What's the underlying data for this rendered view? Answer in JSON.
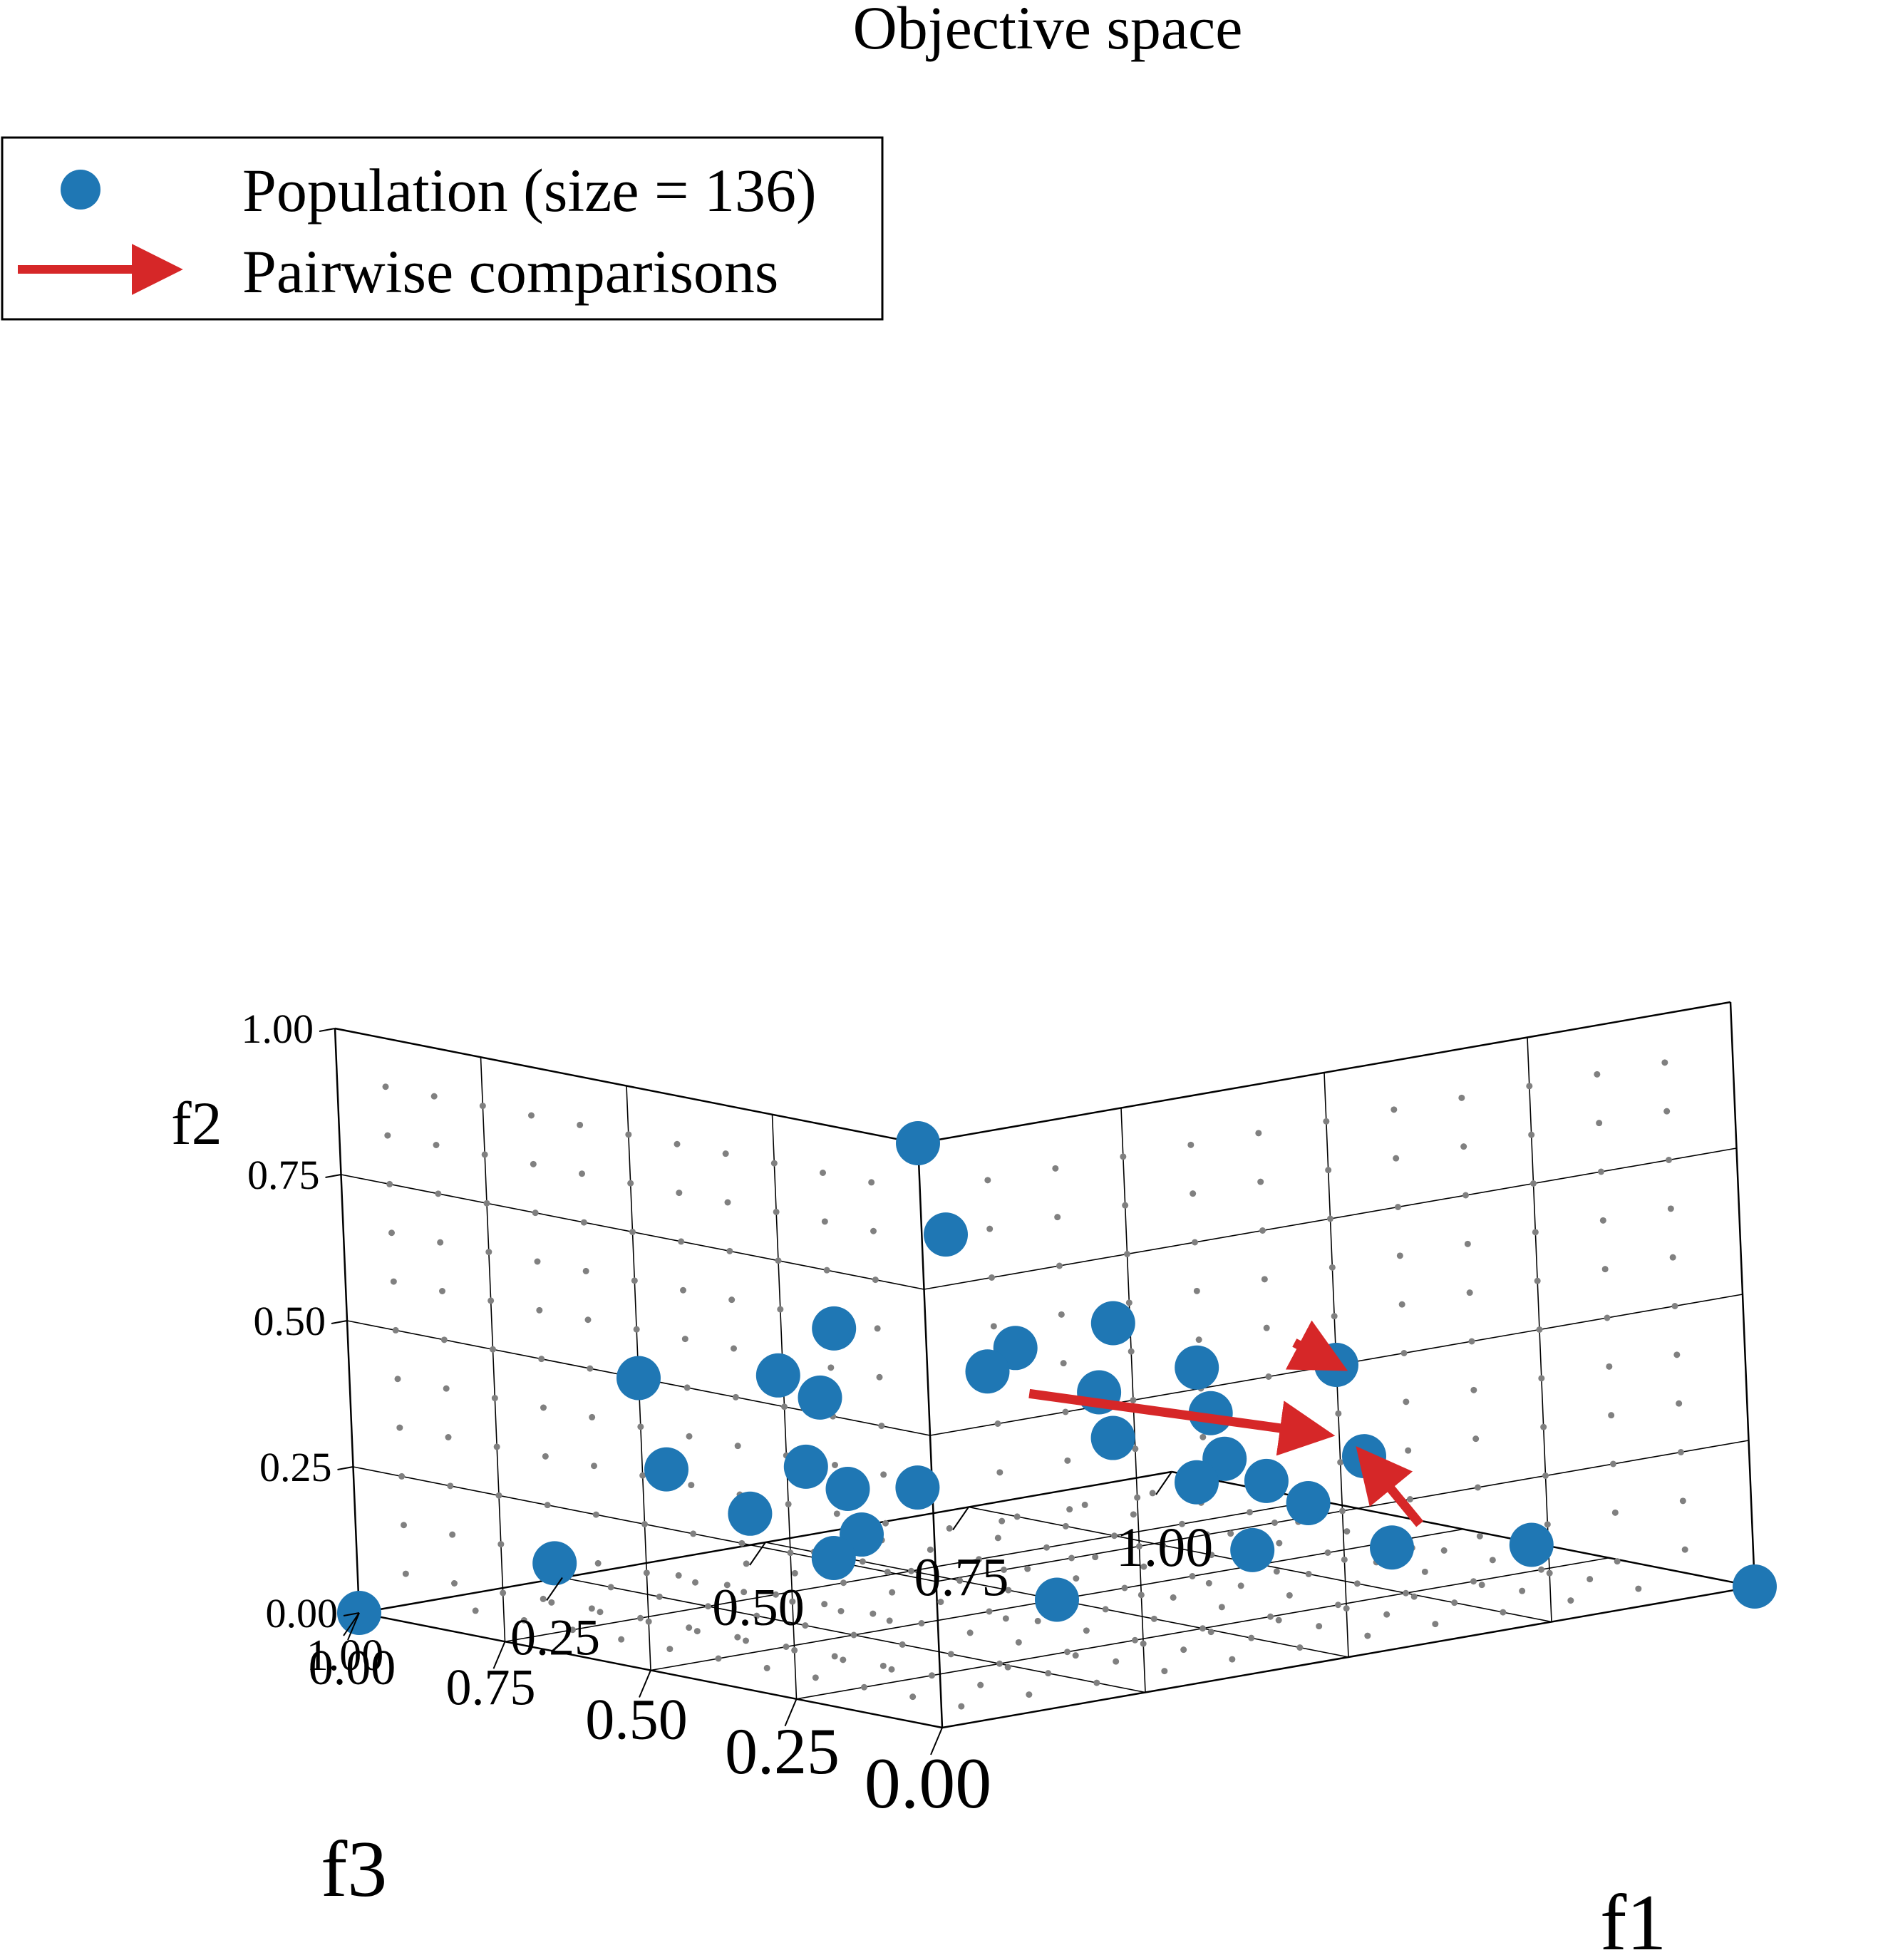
{
  "chart_data": {
    "type": "scatter",
    "projection": "3d",
    "title": "Objective space",
    "legend": {
      "placement": "top-left",
      "entries": [
        {
          "name": "Population (size = 136)",
          "marker": "circle",
          "color": "#1f77b4"
        },
        {
          "name": "Pairwise comparisons",
          "marker": "arrow",
          "color": "#d62728"
        }
      ]
    },
    "axes": {
      "x": {
        "label": "f1",
        "ticks": [
          "0.00",
          "0.25",
          "0.50",
          "0.75",
          "1.00"
        ],
        "range": [
          0,
          1
        ]
      },
      "y": {
        "label": "f2",
        "ticks": [
          "0.00",
          "0.25",
          "0.50",
          "0.75",
          "1.00"
        ],
        "range": [
          0,
          1
        ]
      },
      "z": {
        "label": "f3",
        "ticks": [
          "0.00",
          "0.25",
          "0.50",
          "0.75",
          "1.00"
        ],
        "range": [
          0,
          1
        ]
      }
    },
    "grid": true,
    "colors": {
      "population": "#1f77b4",
      "comparisons": "#d62728",
      "background_points": "#808080",
      "frame": "#000000"
    },
    "series": [
      {
        "name": "Population (size = 136)",
        "points": [
          [
            0.0,
            0.0,
            1.0
          ],
          [
            1.0,
            0.0,
            0.0
          ],
          [
            0.0,
            1.0,
            0.0
          ],
          [
            0.4,
            0.35,
            0.25
          ],
          [
            0.3,
            0.25,
            0.45
          ],
          [
            0.2,
            0.3,
            0.5
          ],
          [
            0.5,
            0.3,
            0.2
          ],
          [
            0.45,
            0.4,
            0.15
          ],
          [
            0.15,
            0.45,
            0.4
          ],
          [
            0.35,
            0.45,
            0.2
          ],
          [
            0.25,
            0.55,
            0.2
          ],
          [
            0.55,
            0.25,
            0.2
          ],
          [
            0.3,
            0.15,
            0.55
          ],
          [
            0.6,
            0.2,
            0.2
          ],
          [
            0.2,
            0.2,
            0.6
          ],
          [
            0.4,
            0.5,
            0.1
          ],
          [
            0.1,
            0.5,
            0.4
          ],
          [
            0.5,
            0.5,
            0.0
          ],
          [
            0.0,
            0.5,
            0.5
          ],
          [
            0.5,
            0.0,
            0.5
          ],
          [
            0.25,
            0.25,
            0.5
          ],
          [
            0.5,
            0.25,
            0.25
          ],
          [
            0.25,
            0.5,
            0.25
          ],
          [
            0.7,
            0.1,
            0.2
          ],
          [
            0.1,
            0.1,
            0.8
          ],
          [
            0.8,
            0.1,
            0.1
          ],
          [
            0.1,
            0.8,
            0.1
          ],
          [
            0.3,
            0.6,
            0.1
          ],
          [
            0.6,
            0.3,
            0.1
          ],
          [
            0.1,
            0.3,
            0.6
          ],
          [
            0.6,
            0.1,
            0.3
          ],
          [
            0.3,
            0.1,
            0.6
          ],
          [
            0.1,
            0.6,
            0.3
          ]
        ]
      }
    ],
    "comparisons": [
      {
        "from": [
          0.3,
          0.45,
          0.25
        ],
        "to": [
          0.55,
          0.35,
          0.1
        ]
      },
      {
        "from": [
          0.45,
          0.55,
          0.0
        ],
        "to": [
          0.5,
          0.5,
          0.0
        ]
      },
      {
        "from": [
          0.7,
          0.15,
          0.15
        ],
        "to": [
          0.6,
          0.3,
          0.1
        ]
      }
    ]
  }
}
